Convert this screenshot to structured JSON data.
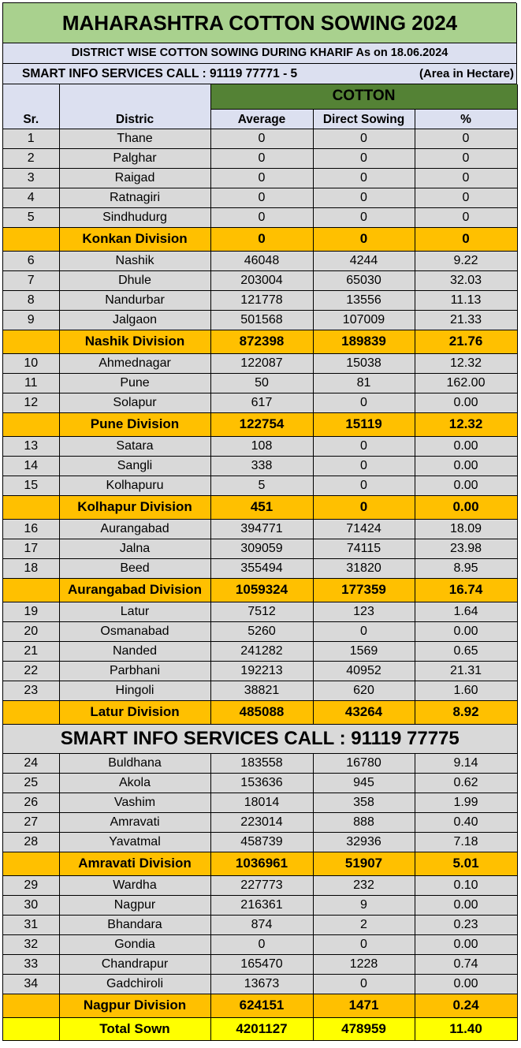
{
  "title": "MAHARASHTRA COTTON SOWING 2024",
  "subtitle": "DISTRICT WISE COTTON SOWING DURING KHARIF  As on 18.06.2024",
  "info_left": "SMART INFO SERVICES CALL : 91119 77771 - 5",
  "info_right": "(Area in Hectare)",
  "header": {
    "group": "COTTON",
    "sr": "Sr.",
    "district": "Distric",
    "average": "Average",
    "direct": "Direct Sowing",
    "percent": "%"
  },
  "groups_top": [
    {
      "rows": [
        {
          "sr": "1",
          "district": "Thane",
          "average": "0",
          "direct": "0",
          "pct": "0"
        },
        {
          "sr": "2",
          "district": "Palghar",
          "average": "0",
          "direct": "0",
          "pct": "0"
        },
        {
          "sr": "3",
          "district": "Raigad",
          "average": "0",
          "direct": "0",
          "pct": "0"
        },
        {
          "sr": "4",
          "district": "Ratnagiri",
          "average": "0",
          "direct": "0",
          "pct": "0"
        },
        {
          "sr": "5",
          "district": "Sindhudurg",
          "average": "0",
          "direct": "0",
          "pct": "0"
        }
      ],
      "division": {
        "name": "Konkan Division",
        "average": "0",
        "direct": "0",
        "pct": "0"
      }
    },
    {
      "rows": [
        {
          "sr": "6",
          "district": "Nashik",
          "average": "46048",
          "direct": "4244",
          "pct": "9.22"
        },
        {
          "sr": "7",
          "district": "Dhule",
          "average": "203004",
          "direct": "65030",
          "pct": "32.03"
        },
        {
          "sr": "8",
          "district": "Nandurbar",
          "average": "121778",
          "direct": "13556",
          "pct": "11.13"
        },
        {
          "sr": "9",
          "district": "Jalgaon",
          "average": "501568",
          "direct": "107009",
          "pct": "21.33"
        }
      ],
      "division": {
        "name": "Nashik Division",
        "average": "872398",
        "direct": "189839",
        "pct": "21.76"
      }
    },
    {
      "rows": [
        {
          "sr": "10",
          "district": "Ahmednagar",
          "average": "122087",
          "direct": "15038",
          "pct": "12.32"
        },
        {
          "sr": "11",
          "district": "Pune",
          "average": "50",
          "direct": "81",
          "pct": "162.00"
        },
        {
          "sr": "12",
          "district": "Solapur",
          "average": "617",
          "direct": "0",
          "pct": "0.00"
        }
      ],
      "division": {
        "name": "Pune Division",
        "average": "122754",
        "direct": "15119",
        "pct": "12.32"
      }
    },
    {
      "rows": [
        {
          "sr": "13",
          "district": "Satara",
          "average": "108",
          "direct": "0",
          "pct": "0.00"
        },
        {
          "sr": "14",
          "district": "Sangli",
          "average": "338",
          "direct": "0",
          "pct": "0.00"
        },
        {
          "sr": "15",
          "district": "Kolhapuru",
          "average": "5",
          "direct": "0",
          "pct": "0.00"
        }
      ],
      "division": {
        "name": "Kolhapur Division",
        "average": "451",
        "direct": "0",
        "pct": "0.00"
      }
    },
    {
      "rows": [
        {
          "sr": "16",
          "district": "Aurangabad",
          "average": "394771",
          "direct": "71424",
          "pct": "18.09"
        },
        {
          "sr": "17",
          "district": "Jalna",
          "average": "309059",
          "direct": "74115",
          "pct": "23.98"
        },
        {
          "sr": "18",
          "district": "Beed",
          "average": "355494",
          "direct": "31820",
          "pct": "8.95"
        }
      ],
      "division": {
        "name": "Aurangabad Division",
        "average": "1059324",
        "direct": "177359",
        "pct": "16.74"
      }
    },
    {
      "rows": [
        {
          "sr": "19",
          "district": "Latur",
          "average": "7512",
          "direct": "123",
          "pct": "1.64"
        },
        {
          "sr": "20",
          "district": "Osmanabad",
          "average": "5260",
          "direct": "0",
          "pct": "0.00"
        },
        {
          "sr": "21",
          "district": "Nanded",
          "average": "241282",
          "direct": "1569",
          "pct": "0.65"
        },
        {
          "sr": "22",
          "district": "Parbhani",
          "average": "192213",
          "direct": "40952",
          "pct": "21.31"
        },
        {
          "sr": "23",
          "district": "Hingoli",
          "average": "38821",
          "direct": "620",
          "pct": "1.60"
        }
      ],
      "division": {
        "name": "Latur Division",
        "average": "485088",
        "direct": "43264",
        "pct": "8.92"
      }
    }
  ],
  "mid_banner": "SMART INFO SERVICES CALL : 91119 77775",
  "groups_bottom": [
    {
      "rows": [
        {
          "sr": "24",
          "district": "Buldhana",
          "average": "183558",
          "direct": "16780",
          "pct": "9.14"
        },
        {
          "sr": "25",
          "district": "Akola",
          "average": "153636",
          "direct": "945",
          "pct": "0.62"
        },
        {
          "sr": "26",
          "district": "Vashim",
          "average": "18014",
          "direct": "358",
          "pct": "1.99"
        },
        {
          "sr": "27",
          "district": "Amravati",
          "average": "223014",
          "direct": "888",
          "pct": "0.40"
        },
        {
          "sr": "28",
          "district": "Yavatmal",
          "average": "458739",
          "direct": "32936",
          "pct": "7.18"
        }
      ],
      "division": {
        "name": "Amravati Division",
        "average": "1036961",
        "direct": "51907",
        "pct": "5.01"
      }
    },
    {
      "rows": [
        {
          "sr": "29",
          "district": "Wardha",
          "average": "227773",
          "direct": "232",
          "pct": "0.10"
        },
        {
          "sr": "30",
          "district": "Nagpur",
          "average": "216361",
          "direct": "9",
          "pct": "0.00"
        },
        {
          "sr": "31",
          "district": "Bhandara",
          "average": "874",
          "direct": "2",
          "pct": "0.23"
        },
        {
          "sr": "32",
          "district": "Gondia",
          "average": "0",
          "direct": "0",
          "pct": "0.00"
        },
        {
          "sr": "33",
          "district": "Chandrapur",
          "average": "165470",
          "direct": "1228",
          "pct": "0.74"
        },
        {
          "sr": "34",
          "district": "Gadchiroli",
          "average": "13673",
          "direct": "0",
          "pct": "0.00"
        }
      ],
      "division": {
        "name": "Nagpur Division",
        "average": "624151",
        "direct": "1471",
        "pct": "0.24"
      }
    }
  ],
  "total": {
    "name": "Total Sown",
    "average": "4201127",
    "direct": "478959",
    "pct": "11.40"
  },
  "colors": {
    "title_bg": "#a9d18e",
    "header_bg": "#dce0f0",
    "cotton_bg": "#548235",
    "row_bg": "#d9d9d9",
    "division_bg": "#ffc000",
    "total_bg": "#ffff00"
  }
}
